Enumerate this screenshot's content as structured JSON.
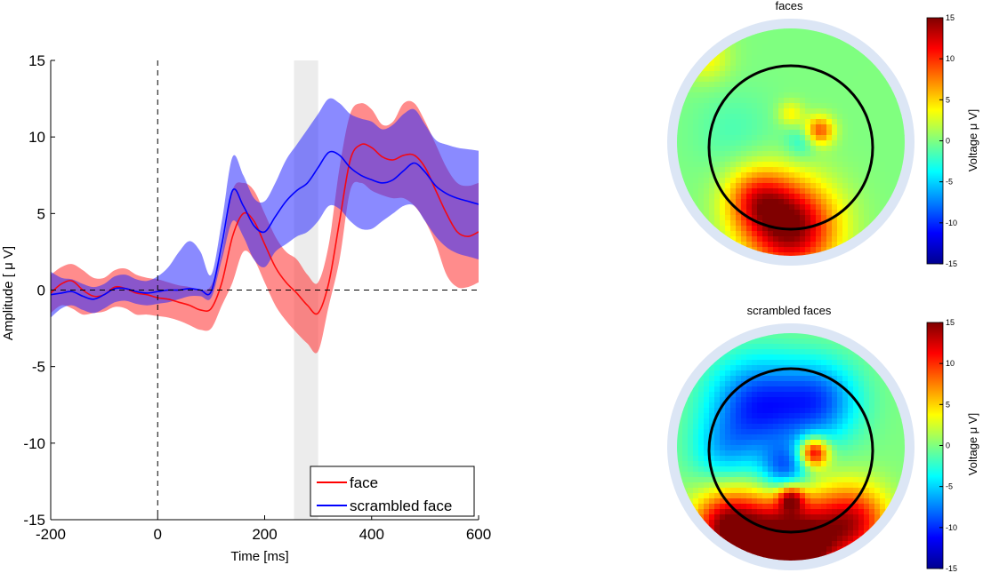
{
  "colors": {
    "face": "#ff0000",
    "face_band": "#ff4040",
    "scrambled": "#0000ff",
    "scrambled_band": "#2a2aff",
    "highlight": "#d9d9d9",
    "head_ring": "#dce6f5",
    "background": "#ffffff"
  },
  "chart_data": [
    {
      "type": "line",
      "title": "",
      "xlabel": "Time [ms]",
      "ylabel": "Amplitude [ μ V]",
      "xlim": [
        -200,
        600
      ],
      "ylim": [
        -15,
        15
      ],
      "xticks": [
        -200,
        0,
        200,
        400,
        600
      ],
      "xtick_labels": [
        "-200",
        "0",
        "200",
        "400",
        "600"
      ],
      "yticks": [
        -15,
        -10,
        -5,
        0,
        5,
        10,
        15
      ],
      "ytick_labels": [
        "-15",
        "-10",
        "-5",
        "0",
        "5",
        "10",
        "15"
      ],
      "highlight_window": [
        255,
        300
      ],
      "reference_lines": {
        "x": 0,
        "y": 0
      },
      "legend": {
        "position": "bottom-right",
        "entries": [
          "face",
          "scrambled face"
        ]
      },
      "x": [
        -200,
        -180,
        -160,
        -140,
        -120,
        -100,
        -80,
        -60,
        -40,
        -20,
        0,
        20,
        40,
        60,
        80,
        100,
        120,
        140,
        160,
        180,
        200,
        220,
        240,
        260,
        280,
        300,
        320,
        340,
        360,
        380,
        400,
        420,
        440,
        460,
        480,
        500,
        520,
        540,
        560,
        580,
        600
      ],
      "series": [
        {
          "name": "face",
          "mean": [
            -0.2,
            0.4,
            0.6,
            0.0,
            -0.4,
            -0.3,
            0.2,
            0.1,
            -0.2,
            -0.3,
            -0.5,
            -0.6,
            -0.8,
            -1.0,
            -1.3,
            -1.2,
            0.5,
            3.5,
            5.0,
            4.5,
            3.0,
            1.5,
            0.5,
            -0.2,
            -1.0,
            -1.5,
            0.5,
            4.5,
            8.5,
            9.5,
            9.3,
            8.7,
            8.5,
            8.8,
            8.8,
            8.0,
            6.5,
            5.0,
            3.8,
            3.5,
            3.8
          ],
          "lower": [
            -1.5,
            -1.0,
            -1.2,
            -1.6,
            -1.5,
            -1.4,
            -1.1,
            -1.2,
            -1.6,
            -1.6,
            -1.7,
            -1.8,
            -2.0,
            -2.3,
            -2.6,
            -2.5,
            -1.0,
            0.5,
            2.5,
            2.0,
            0.5,
            -1.0,
            -2.0,
            -2.8,
            -3.5,
            -4.0,
            -1.0,
            2.0,
            6.5,
            7.0,
            6.5,
            6.2,
            6.0,
            6.0,
            5.5,
            4.5,
            3.0,
            1.0,
            0.2,
            0.2,
            0.5
          ],
          "upper": [
            1.0,
            1.5,
            1.7,
            1.3,
            0.8,
            0.8,
            1.3,
            1.4,
            1.0,
            0.8,
            0.7,
            0.5,
            0.3,
            0.2,
            0.0,
            0.3,
            2.5,
            6.5,
            7.0,
            6.5,
            5.0,
            3.5,
            2.5,
            2.0,
            1.0,
            0.5,
            3.0,
            8.0,
            11.5,
            12.2,
            11.8,
            10.8,
            11.0,
            12.2,
            12.2,
            11.0,
            9.5,
            8.0,
            7.0,
            6.8,
            7.0
          ]
        },
        {
          "name": "scrambled face",
          "mean": [
            -0.3,
            -0.2,
            -0.1,
            -0.4,
            -0.6,
            -0.3,
            0.1,
            0.1,
            -0.1,
            -0.2,
            -0.1,
            0.0,
            0.0,
            0.1,
            0.0,
            -0.1,
            3.0,
            6.5,
            5.5,
            4.2,
            3.8,
            4.8,
            5.8,
            6.5,
            7.0,
            8.0,
            9.0,
            8.8,
            8.0,
            7.5,
            7.2,
            7.0,
            7.2,
            7.8,
            8.3,
            7.7,
            6.8,
            6.3,
            6.0,
            5.8,
            5.6
          ],
          "lower": [
            -1.8,
            -1.2,
            -1.0,
            -1.3,
            -1.5,
            -1.2,
            -0.8,
            -0.7,
            -0.9,
            -1.0,
            -0.9,
            -0.8,
            -0.6,
            -0.4,
            -0.4,
            -0.5,
            2.0,
            4.5,
            3.5,
            2.0,
            1.5,
            2.5,
            3.0,
            3.5,
            3.8,
            4.5,
            5.5,
            5.3,
            4.5,
            4.0,
            4.0,
            4.5,
            5.0,
            5.5,
            5.5,
            4.5,
            3.5,
            2.8,
            2.4,
            2.2,
            2.0
          ],
          "upper": [
            1.2,
            0.8,
            0.7,
            0.4,
            0.2,
            0.4,
            0.9,
            1.0,
            0.7,
            0.6,
            0.9,
            1.5,
            2.5,
            3.2,
            2.5,
            1.0,
            4.5,
            8.7,
            7.5,
            6.0,
            5.8,
            7.0,
            8.5,
            9.5,
            10.5,
            11.5,
            12.5,
            12.2,
            11.5,
            11.2,
            11.0,
            10.5,
            10.8,
            11.5,
            11.8,
            10.8,
            9.8,
            9.5,
            9.3,
            9.2,
            9.1
          ]
        }
      ]
    },
    {
      "type": "heatmap",
      "title": "faces",
      "colorbar": {
        "label": "Voltage μ V]",
        "min": -15,
        "max": 15,
        "ticks": [
          15,
          10,
          5,
          0,
          -5,
          -10,
          -15
        ],
        "tick_labels": [
          "15",
          "10",
          "5",
          "0",
          "-5",
          "-10",
          "-15"
        ]
      },
      "sources": [
        {
          "u": 0.0,
          "v": -0.75,
          "amp": 15,
          "sigma": 0.28
        },
        {
          "u": -0.3,
          "v": -0.5,
          "amp": 8,
          "sigma": 0.2
        },
        {
          "u": 0.25,
          "v": 0.1,
          "amp": 9,
          "sigma": 0.09
        },
        {
          "u": 0.0,
          "v": 0.25,
          "amp": 4,
          "sigma": 0.08
        },
        {
          "u": -0.75,
          "v": 0.75,
          "amp": 4,
          "sigma": 0.15
        },
        {
          "u": 0.1,
          "v": 0.0,
          "amp": -3,
          "sigma": 0.1
        },
        {
          "u": -0.5,
          "v": 0.1,
          "amp": -1.5,
          "sigma": 0.25
        }
      ]
    },
    {
      "type": "heatmap",
      "title": "scrambled faces",
      "colorbar": {
        "label": "Voltage μ V]",
        "min": -15,
        "max": 15,
        "ticks": [
          15,
          10,
          5,
          0,
          -5,
          -10,
          -15
        ],
        "tick_labels": [
          "15",
          "10",
          "5",
          "0",
          "-5",
          "-10",
          "-15"
        ]
      },
      "sources": [
        {
          "u": 0.0,
          "v": -0.9,
          "amp": 20,
          "sigma": 0.3
        },
        {
          "u": -0.55,
          "v": -0.7,
          "amp": 14,
          "sigma": 0.22
        },
        {
          "u": 0.55,
          "v": -0.65,
          "amp": 11,
          "sigma": 0.22
        },
        {
          "u": 0.2,
          "v": -0.05,
          "amp": 14,
          "sigma": 0.09
        },
        {
          "u": 0.0,
          "v": -0.45,
          "amp": 10,
          "sigma": 0.08
        },
        {
          "u": -0.3,
          "v": 0.35,
          "amp": -10,
          "sigma": 0.3
        },
        {
          "u": 0.25,
          "v": 0.4,
          "amp": -8,
          "sigma": 0.25
        },
        {
          "u": -0.05,
          "v": -0.2,
          "amp": -8,
          "sigma": 0.15
        },
        {
          "u": -0.6,
          "v": -0.05,
          "amp": -4,
          "sigma": 0.2
        }
      ]
    }
  ]
}
